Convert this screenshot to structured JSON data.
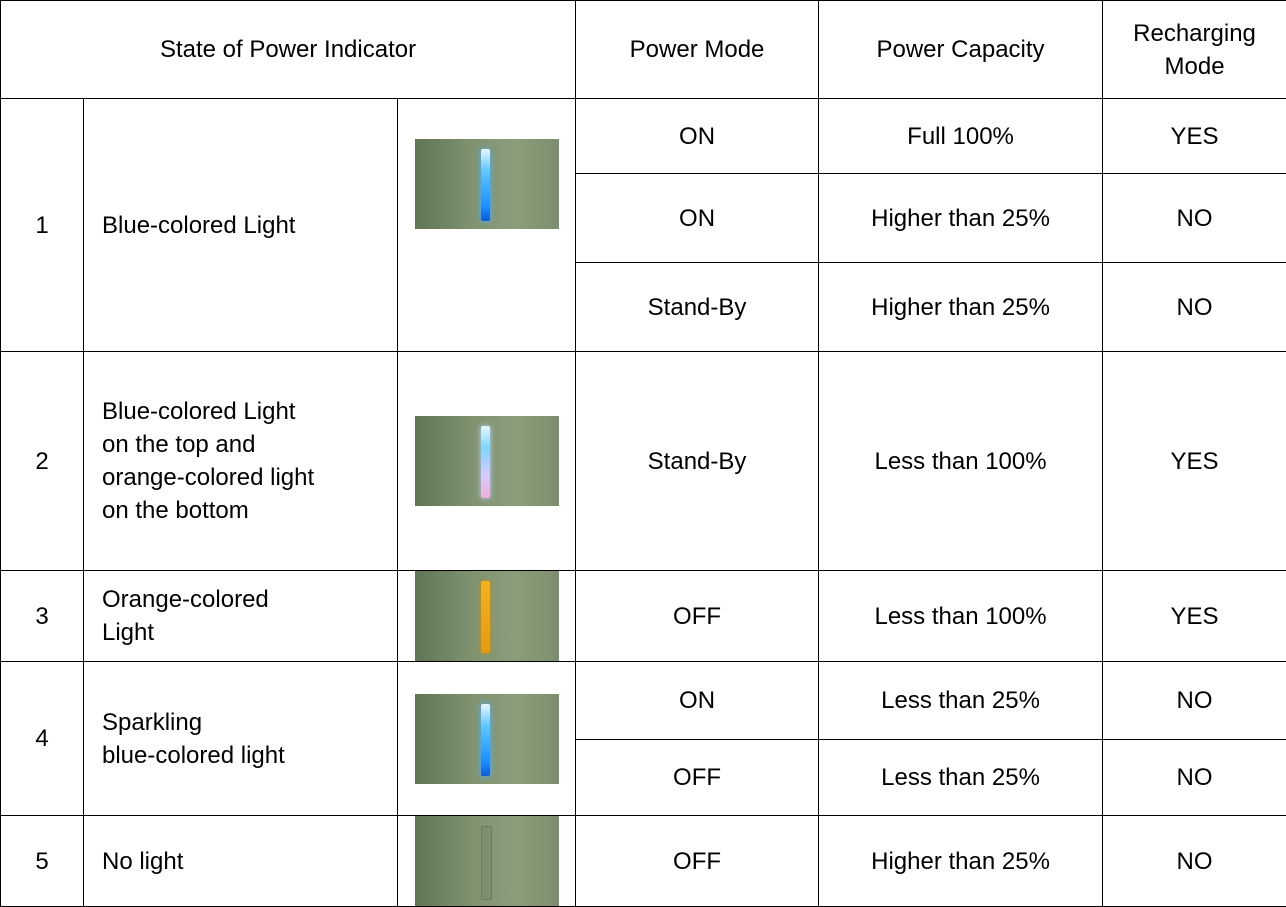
{
  "table": {
    "header": [
      "State of Power Indicator",
      "Power Mode",
      "Power Capacity",
      "Recharging Mode"
    ],
    "rows": [
      {
        "number": "1",
        "description": [
          "Blue-colored Light"
        ],
        "states": [
          {
            "power_mode": "ON",
            "capacity": "Full 100%",
            "recharging": "YES"
          },
          {
            "power_mode": "ON",
            "capacity": "Higher than 25%",
            "recharging": "NO"
          },
          {
            "power_mode": "Stand-By",
            "capacity": "Higher than 25%",
            "recharging": "NO"
          }
        ]
      },
      {
        "number": "2",
        "description": [
          "Blue-colored Light",
          "on the top and",
          "orange-colored light",
          "on the bottom"
        ],
        "states": [
          {
            "power_mode": "Stand-By",
            "capacity": "Less than 100%",
            "recharging": "YES"
          }
        ]
      },
      {
        "number": "3",
        "description": [
          "Orange-colored",
          "Light"
        ],
        "states": [
          {
            "power_mode": "OFF",
            "capacity": "Less than 100%",
            "recharging": "YES"
          }
        ]
      },
      {
        "number": "4",
        "description": [
          "Sparkling",
          "blue-colored light"
        ],
        "states": [
          {
            "power_mode": "ON",
            "capacity": "Less than 25%",
            "recharging": "NO"
          },
          {
            "power_mode": "OFF",
            "capacity": "Less than 25%",
            "recharging": "NO"
          }
        ]
      },
      {
        "number": "5",
        "description": [
          "No light"
        ],
        "states": [
          {
            "power_mode": "OFF",
            "capacity": "Higher than 25%",
            "recharging": "NO"
          }
        ]
      }
    ]
  }
}
